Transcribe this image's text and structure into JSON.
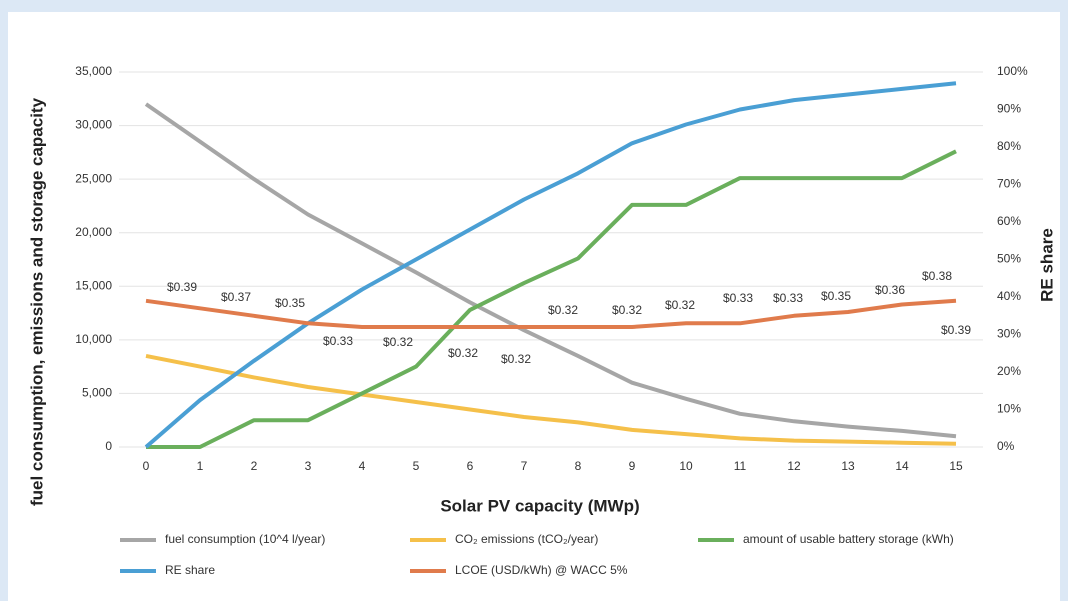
{
  "chart_data": {
    "type": "line",
    "x_label": "Solar PV capacity (MWp)",
    "y_label": "fuel consumption, emissions and storage capacity",
    "y2_label": "RE share",
    "x": [
      0,
      1,
      2,
      3,
      4,
      5,
      6,
      7,
      8,
      9,
      10,
      11,
      12,
      13,
      14,
      15
    ],
    "xlim": [
      -0.5,
      15.5
    ],
    "xticks": [
      0,
      1,
      2,
      3,
      4,
      5,
      6,
      7,
      8,
      9,
      10,
      11,
      12,
      13,
      14,
      15
    ],
    "ylim": [
      0,
      35000
    ],
    "yticks": [
      0,
      {
        "value": 5000,
        "label": "5,000"
      },
      {
        "value": 10000,
        "label": "10,000"
      },
      {
        "value": 15000,
        "label": "15,000"
      },
      {
        "value": 20000,
        "label": "20,000"
      },
      {
        "value": 25000,
        "label": "25,000"
      },
      {
        "value": 30000,
        "label": "30,000"
      },
      {
        "value": 35000,
        "label": "35,000"
      }
    ],
    "y2lim": [
      0,
      1
    ],
    "y2ticks": [
      {
        "value": 0,
        "label": "0%"
      },
      {
        "value": 0.1,
        "label": "10%"
      },
      {
        "value": 0.2,
        "label": "20%"
      },
      {
        "value": 0.3,
        "label": "30%"
      },
      {
        "value": 0.4,
        "label": "40%"
      },
      {
        "value": 0.5,
        "label": "50%"
      },
      {
        "value": 0.6,
        "label": "60%"
      },
      {
        "value": 0.7,
        "label": "70%"
      },
      {
        "value": 0.8,
        "label": "80%"
      },
      {
        "value": 0.9,
        "label": "90%"
      },
      {
        "value": 1,
        "label": "100%"
      }
    ],
    "grid": true,
    "legend": "bottom",
    "series": [
      {
        "name": "fuel consumption (10^4 l/year)",
        "color": "#a6a6a6",
        "values": [
          32000,
          28500,
          25000,
          21700,
          19000,
          16300,
          13500,
          10900,
          8500,
          6000,
          4500,
          3100,
          2400,
          1900,
          1500,
          1000
        ]
      },
      {
        "name": "CO₂ emissions (tCO₂/year)",
        "color": "#f5c04a",
        "values": [
          8500,
          7500,
          6500,
          5600,
          4900,
          4200,
          3500,
          2800,
          2300,
          1600,
          1200,
          800,
          600,
          500,
          400,
          300
        ]
      },
      {
        "name": "amount of usable battery storage (kWh)",
        "color": "#6aaf5c",
        "values": [
          0,
          0,
          2500,
          2500,
          5000,
          7500,
          12800,
          15300,
          17600,
          22600,
          22600,
          25100,
          25100,
          25100,
          25100,
          27600
        ]
      },
      {
        "name": "RE share",
        "color": "#4a9fd4",
        "axis": "y2",
        "values": [
          0,
          0.125,
          0.23,
          0.33,
          0.42,
          0.5,
          0.58,
          0.66,
          0.73,
          0.81,
          0.86,
          0.9,
          0.925,
          0.94,
          0.955,
          0.97
        ]
      },
      {
        "name": "LCOE (USD/kWh) @ WACC 5%",
        "color": "#e07b4c",
        "axis": "y2",
        "values": [
          0.39,
          0.37,
          0.35,
          0.33,
          0.32,
          0.32,
          0.32,
          0.32,
          0.32,
          0.32,
          0.33,
          0.33,
          0.35,
          0.36,
          0.38,
          0.39
        ],
        "value_labels": [
          "$0.39",
          "$0.37",
          "$0.35",
          "$0.33",
          "$0.32",
          "$0.32",
          "$0.32",
          "$0.32",
          "$0.32",
          "$0.32",
          "$0.33",
          "$0.33",
          "$0.35",
          "$0.36",
          "$0.38",
          "$0.39"
        ]
      }
    ]
  }
}
